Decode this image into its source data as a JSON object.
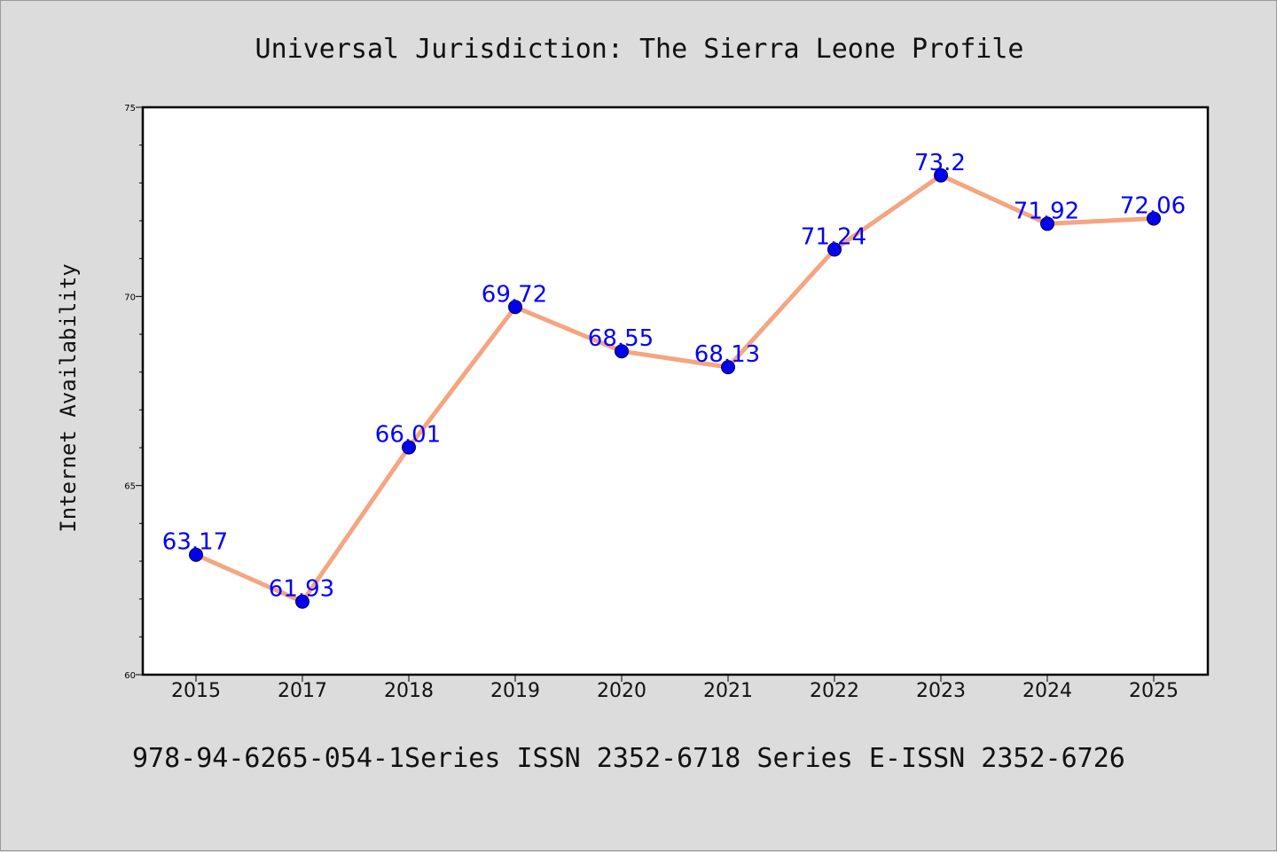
{
  "chart_data": {
    "type": "line",
    "title": "Universal Jurisdiction: The Sierra Leone Profile",
    "xlabel": "",
    "ylabel": "Internet Availability",
    "footer": "978-94-6265-054-1Series ISSN 2352-6718 Series E-ISSN 2352-6726",
    "categories": [
      "2015",
      "2017",
      "2018",
      "2019",
      "2020",
      "2021",
      "2022",
      "2023",
      "2024",
      "2025"
    ],
    "series": [
      {
        "values": [
          63.17,
          61.93,
          66.01,
          69.72,
          68.55,
          68.13,
          71.24,
          73.2,
          71.92,
          72.06
        ],
        "labels": [
          "63.17",
          "61.93",
          "66.01",
          "69.72",
          "68.55",
          "68.13",
          "71.24",
          "73.2",
          "71.92",
          "72.06"
        ],
        "line_color": "#f4a582",
        "marker_color": "#0000ee",
        "label_color": "#0000ff"
      }
    ],
    "ylim": [
      60,
      75
    ],
    "yticks": [
      "60",
      "65",
      "70",
      "75"
    ],
    "grid": false,
    "legend": "none"
  }
}
